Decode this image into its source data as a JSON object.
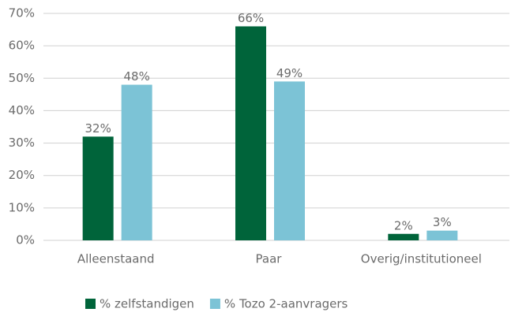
{
  "chart_data": {
    "type": "bar",
    "categories": [
      "Alleenstaand",
      "Paar",
      "Overig/institutioneel"
    ],
    "series": [
      {
        "name": "% zelfstandigen",
        "color": "#00643a",
        "values": [
          32,
          66,
          2
        ],
        "value_labels": [
          "32%",
          "66%",
          "2%"
        ]
      },
      {
        "name": "% Tozo 2-aanvragers",
        "color": "#7cc3d6",
        "values": [
          48,
          49,
          3
        ],
        "value_labels": [
          "48%",
          "49%",
          "3%"
        ]
      }
    ],
    "ylim": [
      0,
      70
    ],
    "yticks": [
      {
        "value": 0,
        "label": "0%"
      },
      {
        "value": 10,
        "label": "10%"
      },
      {
        "value": 20,
        "label": "20%"
      },
      {
        "value": 30,
        "label": "30%"
      },
      {
        "value": 40,
        "label": "40%"
      },
      {
        "value": 50,
        "label": "50%"
      },
      {
        "value": 60,
        "label": "60%"
      },
      {
        "value": 70,
        "label": "70%"
      }
    ],
    "grid": true,
    "legend": "bottom"
  }
}
